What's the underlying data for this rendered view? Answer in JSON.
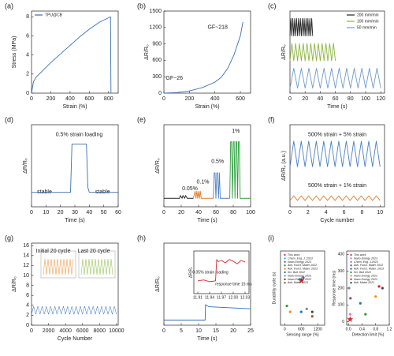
{
  "chart_data": [
    {
      "type": "line",
      "label": "(a)",
      "xlabel": "Strain (%)",
      "ylabel": "Stress (MPa)",
      "xlim": [
        0,
        900
      ],
      "ylim": [
        0,
        8.6
      ],
      "xticks": [
        0,
        200,
        400,
        600,
        800
      ],
      "yticks": [
        0,
        2,
        4,
        6,
        8
      ],
      "legend": "upper left",
      "series": [
        {
          "name": "TPU@CB",
          "color": "#3a6fb0",
          "x": [
            0,
            20,
            50,
            100,
            200,
            300,
            400,
            500,
            600,
            700,
            800,
            820,
            825
          ],
          "values": [
            0,
            1.2,
            1.7,
            2.2,
            3.2,
            4.1,
            5.0,
            5.9,
            6.7,
            7.4,
            7.9,
            8.0,
            0
          ]
        }
      ]
    },
    {
      "type": "line",
      "label": "(b)",
      "xlabel": "Strain (%)",
      "ylabel": "ΔR/R₀",
      "xlim": [
        0,
        680
      ],
      "ylim": [
        0,
        1500
      ],
      "xticks": [
        0,
        200,
        400,
        600
      ],
      "yticks": [
        0,
        300,
        600,
        900,
        1200,
        1500
      ],
      "annotations": [
        "GF~26",
        "GF~218"
      ],
      "series": [
        {
          "color": "#3a6fb0",
          "x": [
            0,
            100,
            200,
            300,
            400,
            450,
            500,
            550,
            600,
            620
          ],
          "values": [
            0,
            10,
            40,
            100,
            200,
            290,
            450,
            700,
            1050,
            1300
          ]
        }
      ]
    },
    {
      "type": "line",
      "label": "(c)",
      "xlabel": "Time (s)",
      "ylabel": "ΔR/R₀",
      "xlim": [
        0,
        125
      ],
      "ylim": [
        0,
        3.3
      ],
      "xticks": [
        0,
        20,
        40,
        60,
        80,
        100,
        120
      ],
      "legend": "upper right",
      "series": [
        {
          "name": "200 mm/min",
          "color": "#222222",
          "x": [
            0,
            1.25,
            2.5,
            3.75,
            5,
            6.25,
            7.5,
            8.75,
            10,
            11.25,
            12.5,
            13.75,
            15,
            16.25,
            17.5,
            18.75,
            20,
            21.25,
            22.5,
            23.75,
            25,
            26.25,
            27.5,
            28.75,
            30
          ],
          "values": [
            2.3,
            3.0,
            2.3,
            3.0,
            2.3,
            3.0,
            2.3,
            3.0,
            2.3,
            3.0,
            2.3,
            3.0,
            2.3,
            3.0,
            2.3,
            3.0,
            2.3,
            3.0,
            2.3,
            3.0,
            2.3,
            3.0,
            2.3,
            3.0,
            2.3
          ]
        },
        {
          "name": "100 mm/min",
          "color": "#8db43c",
          "x": [
            0,
            2.5,
            5,
            7.5,
            10,
            12.5,
            15,
            17.5,
            20,
            22.5,
            25,
            27.5,
            30,
            32.5,
            35,
            37.5,
            40,
            42.5,
            45,
            47.5,
            50,
            52.5,
            55,
            57.5,
            60
          ],
          "values": [
            1.3,
            2.0,
            1.3,
            2.0,
            1.3,
            2.0,
            1.3,
            2.0,
            1.3,
            2.0,
            1.3,
            2.0,
            1.3,
            2.0,
            1.3,
            2.0,
            1.3,
            2.0,
            1.3,
            2.0,
            1.3,
            2.0,
            1.3,
            2.0,
            1.3
          ]
        },
        {
          "name": "50 mm/min",
          "color": "#6f9bc8",
          "x": [
            0,
            5,
            10,
            15,
            20,
            25,
            30,
            35,
            40,
            45,
            50,
            55,
            60,
            65,
            70,
            75,
            80,
            85,
            90,
            95,
            100,
            105,
            110,
            115,
            120
          ],
          "values": [
            0.2,
            1.0,
            0.2,
            1.0,
            0.2,
            1.0,
            0.2,
            1.0,
            0.2,
            1.0,
            0.2,
            1.0,
            0.2,
            1.0,
            0.2,
            1.0,
            0.2,
            1.0,
            0.2,
            1.0,
            0.2,
            1.0,
            0.2,
            1.0,
            0.2
          ]
        }
      ]
    },
    {
      "type": "line",
      "label": "(d)",
      "xlabel": "Time (s)",
      "ylabel": "ΔR/R₀",
      "xlim": [
        0,
        60
      ],
      "ylim": [
        -0.3,
        1.4
      ],
      "xticks": [
        0,
        10,
        20,
        30,
        40,
        50,
        60
      ],
      "annotations": [
        "stable",
        "0.5% strain loading",
        "stable"
      ],
      "series": [
        {
          "color": "#3a6fb0",
          "x": [
            0,
            27,
            28,
            29,
            38,
            39,
            40,
            60
          ],
          "values": [
            0,
            0,
            1,
            1,
            1,
            0.1,
            0,
            0
          ]
        }
      ]
    },
    {
      "type": "line",
      "label": "(e)",
      "xlabel": "Time (s)",
      "ylabel": "ΔR/R₀",
      "xlim": [
        0,
        100
      ],
      "ylim": [
        -0.3,
        2.6
      ],
      "xticks": [
        0,
        20,
        40,
        60,
        80,
        100
      ],
      "annotations": [
        "0.05%",
        "0.1%",
        "0.5%",
        "1%"
      ],
      "series": [
        {
          "color": "#222222",
          "x": [
            0,
            18,
            19,
            21,
            22,
            24,
            25,
            27,
            28,
            34
          ],
          "values": [
            0,
            0,
            0.1,
            0,
            0.1,
            0,
            0.1,
            0,
            0,
            0
          ]
        },
        {
          "color": "#e07b2a",
          "x": [
            34,
            36,
            37,
            38,
            39,
            40,
            41,
            42,
            43,
            57
          ],
          "values": [
            0,
            0.25,
            0,
            0.25,
            0,
            0.25,
            0,
            0.25,
            0,
            0
          ]
        },
        {
          "color": "#4a7fc0",
          "x": [
            57,
            58,
            59,
            60,
            61,
            62,
            63,
            64,
            65,
            76
          ],
          "values": [
            0,
            0.9,
            0.9,
            0,
            0.9,
            0.9,
            0,
            0.9,
            0,
            0
          ]
        },
        {
          "color": "#2a9d3c",
          "x": [
            76,
            77,
            78,
            79,
            80,
            81,
            82,
            83,
            84,
            85,
            86,
            87,
            88,
            89,
            100
          ],
          "values": [
            0,
            2,
            2,
            0,
            2,
            2,
            0,
            2,
            2,
            0,
            2,
            2,
            0,
            0,
            0
          ]
        }
      ]
    },
    {
      "type": "line",
      "label": "(f)",
      "xlabel": "Cycle number",
      "ylabel": "ΔR/R₀ (a.u.)",
      "xlim": [
        0,
        10.5
      ],
      "ylim": [
        0,
        4.5
      ],
      "xticks": [
        0,
        2,
        4,
        6,
        8,
        10
      ],
      "annotations": [
        "500% strain + 5% strain",
        "500% strain + 1% strain"
      ],
      "series": [
        {
          "color": "#4a7fc0",
          "x": [
            0,
            0.42,
            0.83,
            1.25,
            1.67,
            2.08,
            2.5,
            2.92,
            3.33,
            3.75,
            4.17,
            4.58,
            5,
            5.42,
            5.83,
            6.25,
            6.67,
            7.08,
            7.5,
            7.92,
            8.33,
            8.75,
            9.17,
            9.58,
            10
          ],
          "values": [
            2.2,
            3.6,
            2.2,
            3.6,
            2.2,
            3.6,
            2.2,
            3.6,
            2.2,
            3.6,
            2.2,
            3.6,
            2.2,
            3.6,
            2.2,
            3.6,
            2.2,
            3.6,
            2.2,
            3.6,
            2.2,
            3.6,
            2.2,
            3.6,
            2.2
          ]
        },
        {
          "color": "#e07b2a",
          "x": [
            0,
            0.42,
            0.83,
            1.25,
            1.67,
            2.08,
            2.5,
            2.92,
            3.33,
            3.75,
            4.17,
            4.58,
            5,
            5.42,
            5.83,
            6.25,
            6.67,
            7.08,
            7.5,
            7.92,
            8.33,
            8.75,
            9.17,
            9.58,
            10
          ],
          "values": [
            0.35,
            0.6,
            0.35,
            0.6,
            0.35,
            0.6,
            0.35,
            0.6,
            0.35,
            0.6,
            0.35,
            0.6,
            0.35,
            0.6,
            0.35,
            0.6,
            0.35,
            0.6,
            0.35,
            0.6,
            0.35,
            0.6,
            0.35,
            0.6,
            0.35
          ]
        }
      ]
    },
    {
      "type": "line",
      "label": "(g)",
      "xlabel": "Cycle Number",
      "ylabel": "ΔR/R₀",
      "xlim": [
        0,
        10200
      ],
      "ylim": [
        0,
        16.5
      ],
      "xticks": [
        0,
        2000,
        4000,
        6000,
        8000,
        10000
      ],
      "yticks": [
        0,
        2,
        4,
        6,
        8,
        10,
        12,
        14,
        16
      ],
      "annotations": [
        "Initial 20 cycle",
        "Last 20 cycle"
      ],
      "series": [
        {
          "color": "#2f6db5",
          "x": [
            0,
            250,
            500,
            750,
            1000,
            1250,
            1500,
            1750,
            2000,
            2250,
            2500,
            2750,
            3000,
            3250,
            3500,
            3750,
            4000,
            4250,
            4500,
            4750,
            5000,
            5250,
            5500,
            5750,
            6000,
            6250,
            6500,
            6750,
            7000,
            7250,
            7500,
            7750,
            8000,
            8250,
            8500,
            8750,
            9000,
            9250,
            9500,
            9750,
            10000
          ],
          "values": [
            2.2,
            3.8,
            2.2,
            3.8,
            2.2,
            3.8,
            2.2,
            3.8,
            2.2,
            3.8,
            2.2,
            3.8,
            2.2,
            3.8,
            2.2,
            3.8,
            2.2,
            3.8,
            2.2,
            3.8,
            2.2,
            3.8,
            2.2,
            3.8,
            2.2,
            3.8,
            2.2,
            3.8,
            2.2,
            3.8,
            2.2,
            3.8,
            2.2,
            3.8,
            2.2,
            3.8,
            2.2,
            3.8,
            2.2,
            3.8,
            2.2
          ]
        }
      ]
    },
    {
      "type": "line",
      "label": "(h)",
      "xlabel": "Time (s)",
      "ylabel": "ΔR/R₀",
      "xlim": [
        0,
        25
      ],
      "ylim": [
        0,
        4
      ],
      "xticks": [
        0,
        5,
        10,
        15,
        20,
        25
      ],
      "series": [
        {
          "color": "#2f6db5",
          "x": [
            0,
            11,
            11.9,
            12,
            13,
            25
          ],
          "values": [
            0.25,
            0.25,
            0.25,
            1.0,
            0.9,
            0.8
          ]
        }
      ]
    },
    {
      "type": "scatter",
      "label": "(i)",
      "xlabel": "Sensing range (%)",
      "ylabel": "Durability cycle (s)",
      "xlim": [
        -150,
        1450
      ],
      "ylim": [
        0,
        100
      ],
      "xticks": [
        0,
        600,
        1200
      ],
      "legend": "upper left",
      "series": [
        {
          "name": "This work",
          "color": "#e0262b",
          "marker": "star",
          "x": [
            600
          ],
          "values": [
            60
          ]
        },
        {
          "name": "Chem. Eng. J. 2023",
          "color": "#2bb5c9",
          "x": [
            540
          ],
          "values": [
            62
          ]
        },
        {
          "name": "Nano Energy 2023",
          "color": "#7a52a8",
          "x": [
            680
          ],
          "values": [
            64
          ]
        },
        {
          "name": "Adv. Funct. Mater 2022",
          "color": "#2a9d3c",
          "x": [
            80
          ],
          "values": [
            26
          ]
        },
        {
          "name": "Adv. Funct. Mater. 2023",
          "color": "#f28e1c",
          "x": [
            200
          ],
          "values": [
            18
          ]
        },
        {
          "name": "Sci. Bull 2022",
          "color": "#1f77b4",
          "x": [
            600
          ],
          "values": [
            18
          ]
        },
        {
          "name": "Nano Energy 2023",
          "color": "#888888",
          "x": [
            800
          ],
          "values": [
            22
          ]
        },
        {
          "name": "Nano Energy 2022",
          "color": "#444444",
          "x": [
            1000
          ],
          "values": [
            18
          ]
        },
        {
          "name": "Adv. Mater 2021",
          "color": "#a0522d",
          "x": [
            1000
          ],
          "values": [
            12
          ]
        }
      ]
    },
    {
      "type": "scatter",
      "xlabel": "Detection limit (%)",
      "ylabel": "Response time (ms)",
      "xlim": [
        -0.05,
        1.2
      ],
      "ylim": [
        -20,
        420
      ],
      "xticks": [
        {
          "value": 0,
          "label": "0.0"
        },
        0.4,
        0.8,
        {
          "value": 1.2,
          "label": "1.2"
        }
      ],
      "yticks": [
        0,
        100,
        200,
        300,
        400
      ],
      "legend": "upper left",
      "series": [
        {
          "name": "This work",
          "color": "#e0262b",
          "marker": "star",
          "x": [
            0.05
          ],
          "values": [
            15
          ]
        },
        {
          "name": "Nano Energy 2023",
          "color": "#e377c2",
          "x": [
            0.05
          ],
          "values": [
            45
          ]
        },
        {
          "name": "Chem. Eng. J.2023",
          "color": "#888888",
          "x": [
            0.02
          ],
          "values": [
            200
          ]
        },
        {
          "name": "Adv. Funct. Mater 2022",
          "color": "#7a52a8",
          "x": [
            0.06
          ],
          "values": [
            140
          ]
        },
        {
          "name": "Adv. Funct. Mater. 2023",
          "color": "#1f77b4",
          "x": [
            0.35
          ],
          "values": [
            110
          ]
        },
        {
          "name": "Sci. Bull 2022",
          "color": "#2a9d3c",
          "x": [
            0.5
          ],
          "values": [
            45
          ]
        },
        {
          "name": "Nano Energy 2022",
          "color": "#f28e1c",
          "x": [
            0.8
          ],
          "values": [
            150
          ]
        },
        {
          "name": "Nano Energy 2022",
          "color": "#d62728",
          "x": [
            0.9
          ],
          "values": [
            210
          ]
        },
        {
          "name": "Adv. Mater 2021",
          "color": "#444444",
          "x": [
            1.0
          ],
          "values": [
            200
          ]
        }
      ]
    },
    {
      "type": "line",
      "ylabel": "ΔR/R₀",
      "xlim": [
        11.9,
        12.04
      ],
      "ylim": [
        0,
        1
      ],
      "xticks": [
        11.91,
        11.94,
        11.97,
        {
          "value": 12,
          "label": "12.00"
        },
        12.03
      ],
      "annotations": [
        "0.05% strain loading",
        "response time 15 ms"
      ],
      "series": [
        {
          "color": "#d62728",
          "x": [
            11.91,
            11.925,
            11.94,
            11.955,
            11.958,
            11.962,
            11.97,
            11.98,
            11.99,
            12.0,
            12.01,
            12.02,
            12.03
          ],
          "values": [
            0.3,
            0.32,
            0.28,
            0.3,
            0.8,
            0.75,
            0.78,
            0.72,
            0.8,
            0.76,
            0.7,
            0.78,
            0.74
          ]
        }
      ]
    }
  ]
}
